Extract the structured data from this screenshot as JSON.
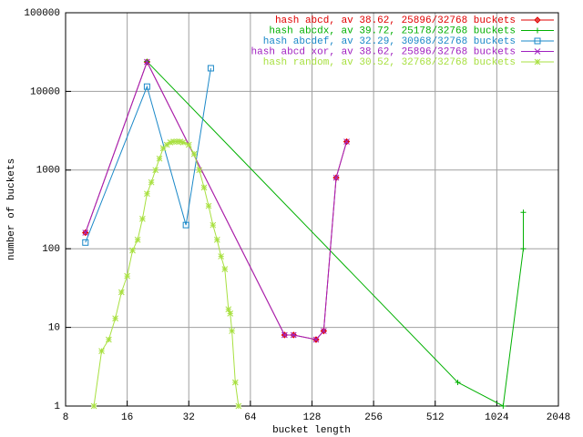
{
  "chart_data": {
    "type": "line",
    "xlabel": "bucket length",
    "ylabel": "number of buckets",
    "xlog": true,
    "ylog": true,
    "grid": true,
    "legend": "top-right",
    "xlim": [
      8,
      2048
    ],
    "xticks": [
      8,
      16,
      32,
      64,
      128,
      256,
      512,
      1024,
      2048
    ],
    "ylim": [
      1,
      100000
    ],
    "yticks": [
      1,
      10,
      100,
      1000,
      10000,
      100000
    ],
    "series": [
      {
        "name": "hash abcd, av 38.62, 25896/32768 buckets",
        "color": "#e00000",
        "marker": "diamond-plus",
        "x": [
          10,
          20,
          94,
          104,
          134,
          146,
          168,
          189
        ],
        "values": [
          160,
          23700,
          8,
          8,
          7,
          9,
          800,
          2300
        ]
      },
      {
        "name": "hash abcdx, av 39.72, 25178/32768 buckets",
        "color": "#00b000",
        "marker": "plus",
        "x": [
          20,
          660,
          1100,
          1380,
          1380
        ],
        "values": [
          24000,
          2,
          1,
          100,
          290
        ]
      },
      {
        "name": "hash abcdef, av 32.29, 30968/32768 buckets",
        "color": "#1a88c8",
        "marker": "square",
        "x": [
          10,
          20,
          31,
          41
        ],
        "values": [
          120,
          11500,
          200,
          19700
        ]
      },
      {
        "name": "hash abcd xor, av 38.62, 25896/32768 buckets",
        "color": "#a020c0",
        "marker": "cross",
        "x": [
          10,
          20,
          94,
          104,
          134,
          146,
          168,
          189
        ],
        "values": [
          160,
          23700,
          8,
          8,
          7,
          9,
          800,
          2300
        ]
      },
      {
        "name": "hash random, av 30.52, 32768/32768 buckets",
        "color": "#a8e040",
        "marker": "star",
        "x": [
          11,
          12,
          13,
          14,
          15,
          16,
          17,
          18,
          19,
          20,
          21,
          22,
          23,
          24,
          25,
          26,
          27,
          28,
          29,
          30,
          32,
          34,
          36,
          38,
          40,
          42,
          44,
          46,
          48,
          50,
          51,
          52,
          54,
          56
        ],
        "values": [
          1,
          5,
          7,
          13,
          28,
          45,
          95,
          130,
          240,
          500,
          700,
          1000,
          1400,
          1900,
          2100,
          2250,
          2300,
          2300,
          2300,
          2250,
          2100,
          1600,
          1000,
          600,
          350,
          200,
          130,
          80,
          55,
          17,
          15,
          9,
          2,
          1
        ]
      }
    ]
  }
}
